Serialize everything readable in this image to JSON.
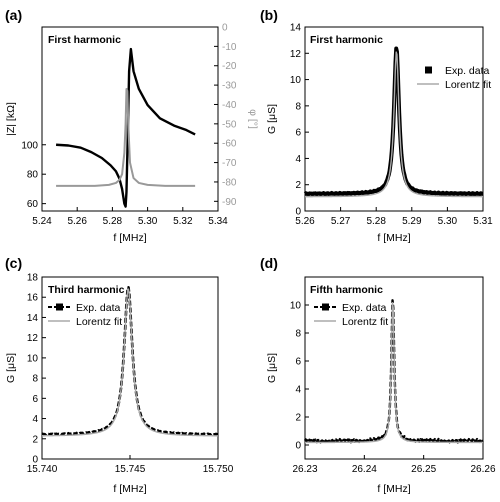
{
  "chart_data": [
    {
      "id": "a",
      "panel_label": "(a)",
      "type": "line",
      "title": "First harmonic",
      "xlabel": "f  [MHz]",
      "ylabel": "|Z| [kΩ]",
      "y2label": "φ [°]",
      "xlim": [
        5.24,
        5.34
      ],
      "ylim": [
        55,
        180
      ],
      "y2lim": [
        -95,
        0
      ],
      "xticks": [
        "5.24",
        "5.26",
        "5.28",
        "5.30",
        "5.32",
        "5.34"
      ],
      "yticks": [
        "60",
        "80",
        "100"
      ],
      "y2ticks": [
        "0",
        "-10",
        "-20",
        "-30",
        "-40",
        "-50",
        "-60",
        "-70",
        "-80",
        "-90"
      ],
      "series": [
        {
          "axis": "left",
          "color": "#000000",
          "x": [
            5.248,
            5.255,
            5.262,
            5.268,
            5.274,
            5.279,
            5.282,
            5.284,
            5.2855,
            5.2868,
            5.2875,
            5.288,
            5.2888,
            5.2895,
            5.2905,
            5.292,
            5.295,
            5.3,
            5.307,
            5.315,
            5.322,
            5.327
          ],
          "y": [
            100,
            99.5,
            98,
            95,
            91,
            86,
            82,
            77,
            70,
            60,
            58,
            68,
            110,
            150,
            165,
            150,
            138,
            127,
            118,
            113,
            110,
            107
          ]
        },
        {
          "axis": "right",
          "color": "#999999",
          "x": [
            5.248,
            5.26,
            5.27,
            5.278,
            5.282,
            5.284,
            5.2855,
            5.2868,
            5.2875,
            5.288,
            5.2885,
            5.289,
            5.29,
            5.292,
            5.295,
            5.3,
            5.31,
            5.32,
            5.327
          ],
          "y": [
            -82,
            -82,
            -82,
            -81.5,
            -80.5,
            -79,
            -76,
            -65,
            -50,
            -32,
            -33,
            -50,
            -70,
            -78,
            -80.5,
            -81.5,
            -82,
            -82,
            -82
          ]
        }
      ]
    },
    {
      "id": "b",
      "panel_label": "(b)",
      "type": "line",
      "title": "First harmonic",
      "xlabel": "f [MHz]",
      "ylabel": "G [μS]",
      "xlim": [
        5.26,
        5.31
      ],
      "ylim": [
        0,
        14
      ],
      "xticks": [
        "5.26",
        "5.27",
        "5.28",
        "5.29",
        "5.30",
        "5.31"
      ],
      "yticks": [
        "0",
        "2",
        "4",
        "6",
        "8",
        "10",
        "12",
        "14"
      ],
      "legend": [
        "Exp. data",
        "Lorentz fit"
      ],
      "resonance": {
        "f0": 5.2857,
        "hw": 0.00085,
        "peak": 12.3,
        "base": 1.2
      }
    },
    {
      "id": "c",
      "panel_label": "(c)",
      "type": "line",
      "title": "Third harmonic",
      "xlabel": "f [MHz]",
      "ylabel": "G [μS]",
      "xlim": [
        15.74,
        15.75
      ],
      "ylim": [
        0,
        18
      ],
      "xticks": [
        "15.740",
        "15.745",
        "15.750"
      ],
      "yticks": [
        "0",
        "2",
        "4",
        "6",
        "8",
        "10",
        "12",
        "14",
        "16",
        "18"
      ],
      "legend": [
        "Exp. data",
        "Lorentz fit"
      ],
      "resonance": {
        "f0": 15.7449,
        "hw": 0.00028,
        "peak": 17.0,
        "base": 2.4
      }
    },
    {
      "id": "d",
      "panel_label": "(d)",
      "type": "line",
      "title": "Fifth harmonic",
      "xlabel": "f [MHz]",
      "ylabel": "G [μS]",
      "xlim": [
        26.23,
        26.26
      ],
      "ylim": [
        -1,
        12
      ],
      "xticks": [
        "26.23",
        "26.24",
        "26.25",
        "26.26"
      ],
      "yticks": [
        "0",
        "2",
        "4",
        "6",
        "8",
        "10"
      ],
      "legend": [
        "Exp. data",
        "Lorentz fit"
      ],
      "resonance": {
        "f0": 26.2448,
        "hw": 0.00028,
        "peak": 10.6,
        "base": 0.3
      }
    }
  ]
}
